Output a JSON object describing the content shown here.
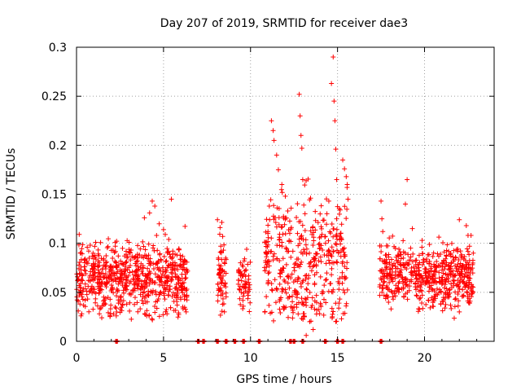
{
  "chart_data": {
    "type": "scatter",
    "title": "Day 207 of 2019, SRMTID for receiver dae3",
    "xlabel": "GPS time / hours",
    "ylabel": "SRMTID / TECUs",
    "xlim": [
      0,
      24
    ],
    "ylim": [
      0,
      0.3
    ],
    "xticks": [
      0,
      5,
      10,
      15,
      20
    ],
    "xtick_labels": [
      "0",
      "5",
      "10",
      "15",
      "20"
    ],
    "yticks": [
      0,
      0.05,
      0.1,
      0.15,
      0.2,
      0.25,
      0.3
    ],
    "ytick_labels": [
      "0",
      "0.05",
      "0.1",
      "0.15",
      "0.2",
      "0.25",
      "0.3"
    ],
    "grid": true,
    "marker": "+",
    "series_color": "#ff0000",
    "series": [
      {
        "name": "SRMTID",
        "clusters": [
          {
            "x_range": [
              0.0,
              6.4
            ],
            "y_center": 0.065,
            "y_spread": 0.018,
            "count": 700
          },
          {
            "x_range": [
              8.1,
              8.6
            ],
            "y_center": 0.065,
            "y_spread": 0.02,
            "count": 60
          },
          {
            "x_range": [
              9.3,
              10.0
            ],
            "y_center": 0.06,
            "y_spread": 0.012,
            "count": 60
          },
          {
            "x_range": [
              10.8,
              15.6
            ],
            "y_center": 0.08,
            "y_spread": 0.035,
            "count": 420
          },
          {
            "x_range": [
              17.4,
              19.6
            ],
            "y_center": 0.07,
            "y_spread": 0.015,
            "count": 200
          },
          {
            "x_range": [
              19.6,
              22.8
            ],
            "y_center": 0.065,
            "y_spread": 0.015,
            "count": 360
          }
        ],
        "points": [
          [
            0.1,
            0.031
          ],
          [
            0.2,
            0.038
          ],
          [
            0.3,
            0.028
          ],
          [
            0.5,
            0.042
          ],
          [
            0.7,
            0.092
          ],
          [
            1.1,
            0.101
          ],
          [
            2.1,
            0.093
          ],
          [
            2.4,
            0.087
          ],
          [
            3.1,
            0.083
          ],
          [
            3.9,
            0.126
          ],
          [
            4.2,
            0.131
          ],
          [
            4.35,
            0.143
          ],
          [
            4.5,
            0.138
          ],
          [
            4.6,
            0.108
          ],
          [
            5.0,
            0.114
          ],
          [
            5.1,
            0.109
          ],
          [
            5.3,
            0.104
          ],
          [
            5.45,
            0.145
          ],
          [
            5.2,
            0.028
          ],
          [
            6.1,
            0.035
          ],
          [
            6.3,
            0.03
          ],
          [
            8.1,
            0.124
          ],
          [
            8.25,
            0.116
          ],
          [
            8.4,
            0.107
          ],
          [
            8.3,
            0.047
          ],
          [
            8.5,
            0.03
          ],
          [
            9.4,
            0.07
          ],
          [
            9.7,
            0.058
          ],
          [
            9.95,
            0.053
          ],
          [
            10.9,
            0.09
          ],
          [
            11.0,
            0.11
          ],
          [
            11.1,
            0.124
          ],
          [
            11.2,
            0.225
          ],
          [
            11.3,
            0.215
          ],
          [
            11.35,
            0.205
          ],
          [
            11.5,
            0.19
          ],
          [
            11.6,
            0.175
          ],
          [
            11.8,
            0.16
          ],
          [
            12.0,
            0.148
          ],
          [
            11.4,
            0.063
          ],
          [
            11.9,
            0.033
          ],
          [
            12.5,
            0.035
          ],
          [
            12.6,
            0.048
          ],
          [
            12.8,
            0.252
          ],
          [
            12.85,
            0.23
          ],
          [
            12.9,
            0.21
          ],
          [
            12.95,
            0.197
          ],
          [
            13.0,
            0.165
          ],
          [
            12.7,
            0.11
          ],
          [
            13.1,
            0.025
          ],
          [
            13.2,
            0.006
          ],
          [
            13.4,
            0.02
          ],
          [
            13.6,
            0.012
          ],
          [
            13.8,
            0.07
          ],
          [
            14.0,
            0.13
          ],
          [
            14.3,
            0.107
          ],
          [
            14.5,
            0.143
          ],
          [
            14.65,
            0.263
          ],
          [
            14.75,
            0.29
          ],
          [
            14.8,
            0.245
          ],
          [
            14.85,
            0.225
          ],
          [
            14.9,
            0.196
          ],
          [
            14.95,
            0.165
          ],
          [
            14.7,
            0.025
          ],
          [
            15.3,
            0.185
          ],
          [
            15.4,
            0.176
          ],
          [
            15.5,
            0.168
          ],
          [
            15.55,
            0.157
          ],
          [
            15.6,
            0.145
          ],
          [
            15.4,
            0.066
          ],
          [
            17.5,
            0.143
          ],
          [
            17.55,
            0.125
          ],
          [
            17.6,
            0.112
          ],
          [
            17.8,
            0.075
          ],
          [
            18.2,
            0.043
          ],
          [
            18.5,
            0.088
          ],
          [
            18.9,
            0.14
          ],
          [
            19.0,
            0.165
          ],
          [
            19.2,
            0.095
          ],
          [
            19.3,
            0.115
          ],
          [
            21.0,
            0.08
          ],
          [
            22.0,
            0.124
          ],
          [
            22.4,
            0.118
          ],
          [
            22.5,
            0.108
          ],
          [
            22.8,
            0.09
          ],
          [
            22.0,
            0.03
          ]
        ],
        "zero_points": [
          2.3,
          7.0,
          7.3,
          8.1,
          8.6,
          9.1,
          9.6,
          10.5,
          12.3,
          12.5,
          13.0,
          14.3,
          15.0,
          15.3,
          17.5
        ]
      }
    ]
  }
}
